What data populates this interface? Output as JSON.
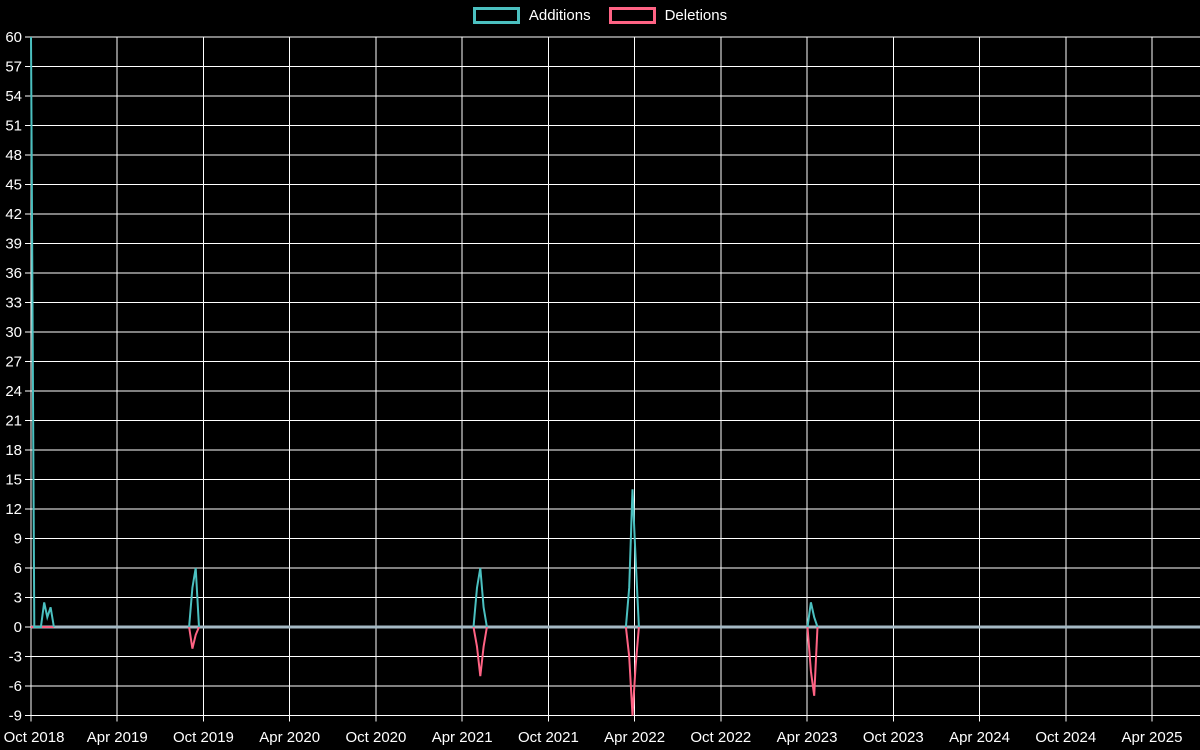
{
  "colors": {
    "background": "#000000",
    "grid": "#ffffff",
    "zero_line": "#a5b9c4",
    "axis_text": "#ffffff",
    "additions": "#4bc0c0",
    "deletions": "#ff6384"
  },
  "legend": {
    "items": [
      {
        "label": "Additions",
        "color": "#4bc0c0"
      },
      {
        "label": "Deletions",
        "color": "#ff6384"
      }
    ]
  },
  "chart_data": {
    "type": "line",
    "title": "",
    "xlabel": "",
    "ylabel": "",
    "legend_position": "top-center",
    "grid": "on",
    "x_axis": {
      "start_date": "2018-10-01",
      "months_per_tick": 6,
      "tick_labels": [
        "Oct 2018",
        "Apr 2019",
        "Oct 2019",
        "Apr 2020",
        "Oct 2020",
        "Apr 2021",
        "Oct 2021",
        "Apr 2022",
        "Oct 2022",
        "Apr 2023",
        "Oct 2023",
        "Apr 2024",
        "Oct 2024",
        "Apr 2025"
      ]
    },
    "y_axis": {
      "min": -9,
      "max": 60,
      "tick_step": 3,
      "tick_labels": [
        60,
        57,
        54,
        51,
        48,
        45,
        42,
        39,
        36,
        33,
        30,
        27,
        24,
        21,
        18,
        15,
        12,
        9,
        6,
        3,
        0,
        -3,
        -6,
        -9
      ]
    },
    "series_names": [
      "Additions",
      "Deletions"
    ],
    "point_format": [
      "date",
      "additions",
      "deletions"
    ],
    "baseline": 0,
    "clusters": [
      [
        [
          "2018-10-01",
          60,
          0
        ],
        [
          "2018-10-08",
          0,
          0
        ],
        [
          "2018-10-15",
          0,
          0
        ],
        [
          "2018-10-22",
          0,
          0
        ],
        [
          "2018-10-29",
          2.5,
          0
        ],
        [
          "2018-11-05",
          1,
          0
        ],
        [
          "2018-11-12",
          2,
          0
        ],
        [
          "2018-11-19",
          0,
          0
        ]
      ],
      [
        [
          "2019-09-01",
          0,
          0
        ],
        [
          "2019-09-08",
          4,
          -2.2
        ],
        [
          "2019-09-15",
          6,
          -0.8
        ],
        [
          "2019-09-22",
          0,
          0
        ]
      ],
      [
        [
          "2021-04-25",
          0,
          0
        ],
        [
          "2021-05-02",
          4,
          -2
        ],
        [
          "2021-05-09",
          6,
          -5
        ],
        [
          "2021-05-16",
          2,
          -2
        ],
        [
          "2021-05-23",
          0,
          0
        ]
      ],
      [
        [
          "2022-03-13",
          0,
          0
        ],
        [
          "2022-03-20",
          4,
          -3
        ],
        [
          "2022-03-27",
          14,
          -9
        ],
        [
          "2022-04-03",
          7,
          -4
        ],
        [
          "2022-04-10",
          0,
          0
        ]
      ],
      [
        [
          "2023-04-02",
          0,
          0
        ],
        [
          "2023-04-09",
          2.5,
          -4.5
        ],
        [
          "2023-04-16",
          1,
          -7
        ],
        [
          "2023-04-23",
          0,
          0
        ]
      ]
    ]
  }
}
